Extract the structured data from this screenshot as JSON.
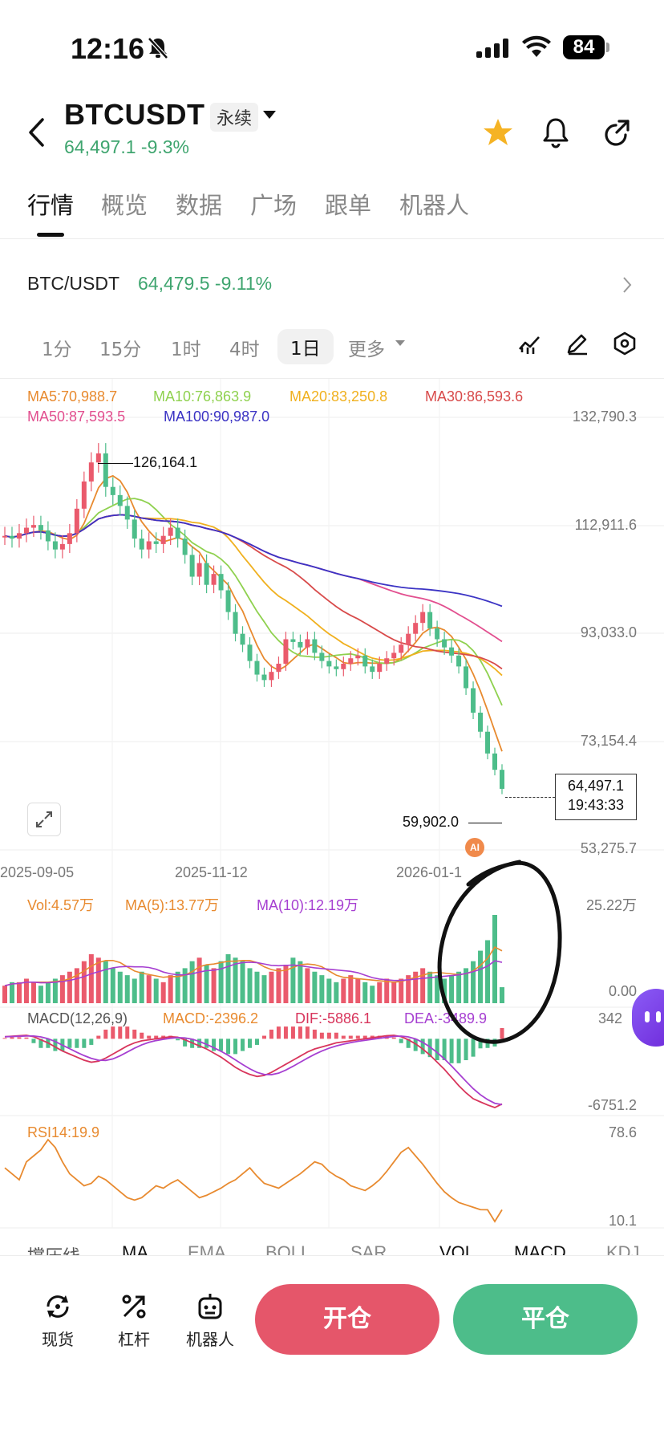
{
  "status": {
    "time": "12:16",
    "battery": "84"
  },
  "header": {
    "symbol": "BTCUSDT",
    "contract_type": "永续",
    "price_line": "64,497.1 -9.3%"
  },
  "tabs": [
    "行情",
    "概览",
    "数据",
    "广场",
    "跟单",
    "机器人"
  ],
  "ticker": {
    "pair": "BTC/USDT",
    "price": "64,479.5 -9.11%"
  },
  "timeframes": [
    "1分",
    "15分",
    "1时",
    "4时",
    "1日",
    "更多"
  ],
  "ma_legend": {
    "ma5": "MA5:70,988.7",
    "ma10": "MA10:76,863.9",
    "ma20": "MA20:83,250.8",
    "ma30": "MA30:86,593.6",
    "ma50": "MA50:87,593.5",
    "ma100": "MA100:90,987.0"
  },
  "colors": {
    "up": "#ea5a6c",
    "down": "#4dbd8a",
    "ma5": "#e88a2f",
    "ma10": "#8fd14f",
    "ma20": "#f0b01e",
    "ma30": "#d84a4a",
    "ma50": "#e24f8f",
    "ma100": "#3b33c4"
  },
  "price_axis": [
    "132,790.3",
    "112,911.6",
    "93,033.0",
    "73,154.4",
    "53,275.7"
  ],
  "high_marker": "126,164.1",
  "low_marker": "59,902.0",
  "last_price_box": {
    "price": "64,497.1",
    "countdown": "19:43:33"
  },
  "date_axis": [
    "2025-09-05",
    "2025-11-12",
    "2026-01-1"
  ],
  "ai_badge": "AI",
  "volume": {
    "vol": "Vol:4.57万",
    "ma5": "MA(5):13.77万",
    "ma10": "MA(10):12.19万",
    "axis_top": "25.22万",
    "axis_bottom": "0.00"
  },
  "macd": {
    "title": "MACD(12,26,9)",
    "macd": "MACD:-2396.2",
    "dif": "DIF:-5886.1",
    "dea": "DEA:-3489.9",
    "axis_top": "342",
    "axis_bottom": "-6751.2"
  },
  "rsi": {
    "title": "RSI14:19.9",
    "axis_top": "78.6",
    "axis_bottom": "10.1"
  },
  "indicator_tabs": [
    "撑压线",
    "MA",
    "EMA",
    "BOLL",
    "SAR",
    "VOL",
    "MACD",
    "KDJ"
  ],
  "bottom_nav": {
    "spot": "现货",
    "leverage": "杠杆",
    "robot": "机器人"
  },
  "actions": {
    "open": "开仓",
    "close": "平仓"
  },
  "chart_data": {
    "type": "candlestick",
    "price_range": [
      53275.7,
      132790.3
    ],
    "x_labels": [
      "2025-09-05",
      "2025-11-12",
      "2026-01-1"
    ],
    "close_series": [
      111000,
      110500,
      111500,
      112500,
      113000,
      112000,
      110000,
      108500,
      109500,
      111500,
      116000,
      121000,
      124500,
      126164.1,
      120000,
      118500,
      116500,
      114000,
      110500,
      108500,
      110000,
      109500,
      111000,
      112500,
      110500,
      107500,
      103500,
      106000,
      102000,
      104000,
      101000,
      97000,
      93000,
      91000,
      88000,
      85500,
      84500,
      86000,
      87500,
      92000,
      91500,
      90500,
      92000,
      89500,
      88000,
      87000,
      86500,
      87500,
      88500,
      89000,
      87000,
      86000,
      87500,
      88500,
      89500,
      91000,
      93000,
      95000,
      97000,
      94000,
      92000,
      90500,
      89000,
      87000,
      83000,
      78500,
      75000,
      71000,
      68000,
      64497.1
    ],
    "volume_series": [
      5,
      6,
      6,
      7,
      6,
      5,
      6,
      7,
      8,
      9,
      10,
      12,
      14,
      13,
      12,
      10,
      9,
      8,
      7,
      9,
      8,
      7,
      6,
      8,
      9,
      10,
      12,
      13,
      11,
      10,
      12,
      14,
      13,
      12,
      10,
      9,
      8,
      9,
      10,
      11,
      13,
      12,
      10,
      9,
      8,
      7,
      6,
      7,
      8,
      7,
      6,
      5,
      6,
      7,
      6,
      7,
      8,
      9,
      10,
      9,
      8,
      7,
      8,
      9,
      10,
      12,
      15,
      18,
      25.22,
      4.57
    ],
    "macd_series": [
      200,
      250,
      300,
      342,
      200,
      -100,
      -400,
      -800,
      -1200,
      -1500,
      -1800,
      -2100,
      -2300,
      -2200,
      -1900,
      -1500,
      -1100,
      -700,
      -400,
      -200,
      -100,
      0,
      100,
      200,
      150,
      -100,
      -400,
      -700,
      -1000,
      -1400,
      -1800,
      -2300,
      -2800,
      -3200,
      -3500,
      -3700,
      -3600,
      -3300,
      -2900,
      -2500,
      -2100,
      -1700,
      -1300,
      -1000,
      -800,
      -600,
      -400,
      -300,
      -200,
      -100,
      0,
      100,
      200,
      300,
      342,
      200,
      -100,
      -500,
      -1000,
      -1600,
      -2300,
      -3000,
      -3800,
      -4600,
      -5300,
      -5886.1,
      -6200,
      -6500,
      -6751.2,
      -6400
    ],
    "rsi_series": [
      55,
      50,
      45,
      60,
      65,
      70,
      78.6,
      72,
      60,
      50,
      45,
      40,
      42,
      48,
      45,
      40,
      35,
      30,
      28,
      30,
      35,
      40,
      38,
      42,
      45,
      40,
      35,
      30,
      32,
      35,
      38,
      42,
      45,
      50,
      55,
      48,
      42,
      40,
      38,
      42,
      46,
      50,
      55,
      60,
      58,
      52,
      48,
      45,
      40,
      38,
      36,
      40,
      45,
      52,
      60,
      68,
      72,
      65,
      58,
      50,
      42,
      35,
      30,
      26,
      24,
      22,
      20,
      19.9,
      10.1,
      19.9
    ]
  }
}
